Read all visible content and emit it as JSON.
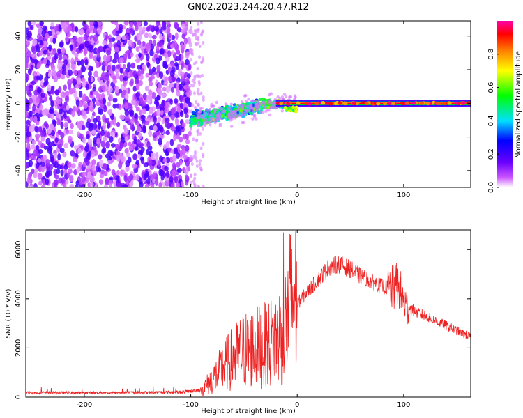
{
  "title": "GN02.2023.244.20.47.R12",
  "chart_data": [
    {
      "type": "heatmap",
      "name": "spectrogram",
      "xlabel": "Height of straight line (km)",
      "ylabel": "Frequency (Hz)",
      "xlim": [
        -255,
        163
      ],
      "ylim": [
        -50,
        49
      ],
      "x_ticks": [
        -200,
        -100,
        0,
        100
      ],
      "y_ticks": [
        -40,
        -20,
        0,
        20,
        40
      ],
      "x_tick_labels": [
        "-200",
        "-100",
        "0",
        "100"
      ],
      "y_tick_labels": [
        "-40",
        "-20",
        "0",
        "20",
        "40"
      ],
      "description_bands": [
        {
          "x_range": [
            -255,
            -100
          ],
          "pattern": "broadband noise",
          "amplitude": 0.12
        },
        {
          "x_range": [
            -100,
            -30
          ],
          "pattern": "scattered signal rising from ~-10 Hz to ~0 Hz",
          "amplitude": 0.35
        },
        {
          "x_range": [
            -30,
            0
          ],
          "pattern": "converging signal near 0 Hz",
          "amplitude": 0.55
        },
        {
          "x_range": [
            0,
            163
          ],
          "pattern": "steady carrier at 0 Hz",
          "amplitude": 0.9
        }
      ]
    },
    {
      "type": "line",
      "name": "snr",
      "xlabel": "Height of straight line (km)",
      "ylabel": "SNR (10 * v/v)",
      "xlim": [
        -255,
        163
      ],
      "ylim": [
        0,
        6800
      ],
      "x_ticks": [
        -200,
        -100,
        0,
        100
      ],
      "y_ticks": [
        0,
        2000,
        4000,
        6000
      ],
      "x_tick_labels": [
        "-200",
        "-100",
        "0",
        "100"
      ],
      "y_tick_labels": [
        "0",
        "2000",
        "4000",
        "6000"
      ],
      "color": "#ee2222",
      "x": [
        -255,
        -200,
        -150,
        -110,
        -90,
        -80,
        -70,
        -60,
        -50,
        -40,
        -30,
        -20,
        -10,
        -5,
        0,
        10,
        20,
        30,
        40,
        50,
        60,
        70,
        80,
        90,
        95,
        100,
        110,
        120,
        130,
        140,
        150,
        163
      ],
      "y": [
        180,
        180,
        190,
        200,
        300,
        700,
        1200,
        1600,
        1900,
        2000,
        2100,
        2300,
        3000,
        4200,
        3800,
        4300,
        4800,
        5300,
        5400,
        5200,
        4900,
        4700,
        4500,
        4400,
        4600,
        3800,
        3500,
        3300,
        3100,
        2900,
        2700,
        2450
      ]
    }
  ],
  "colorbar": {
    "label": "Normalized spectral amplitude",
    "range": [
      0,
      1
    ],
    "ticks": [
      0.0,
      0.2,
      0.4,
      0.6,
      0.8
    ],
    "tick_labels": [
      "0.0",
      "0.2",
      "0.4",
      "0.6",
      "0.8"
    ]
  }
}
